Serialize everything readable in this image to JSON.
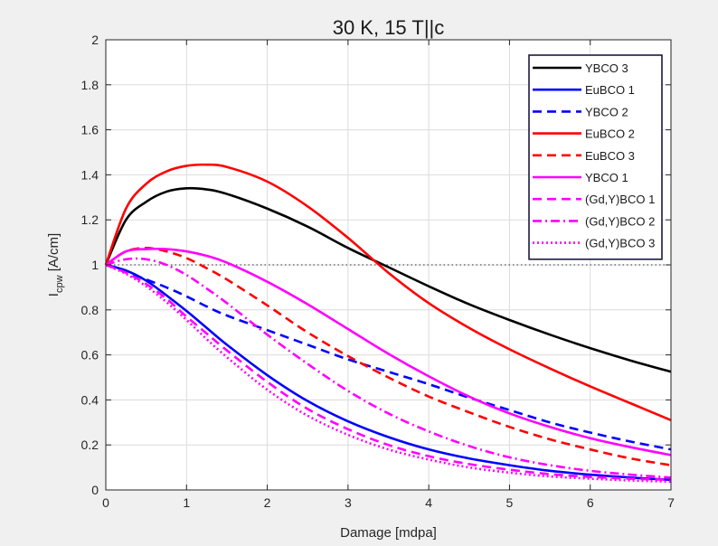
{
  "chart_data": {
    "type": "line",
    "title": "30 K, 15 T||c",
    "xlabel": "Damage [mdpa]",
    "ylabel_main": "I",
    "ylabel_sub": "cpw",
    "ylabel_unit": " [A/cm]",
    "xlim": [
      0,
      7
    ],
    "ylim": [
      0,
      2
    ],
    "xticks": [
      0,
      1,
      2,
      3,
      4,
      5,
      6,
      7
    ],
    "yticks": [
      0,
      0.2,
      0.4,
      0.6,
      0.8,
      1,
      1.2,
      1.4,
      1.6,
      1.8,
      2
    ],
    "grid": true,
    "legend_position": "top-right",
    "reference_line": {
      "y": 1,
      "style": "dotted",
      "color": "#555555"
    },
    "x": [
      0,
      0.25,
      0.5,
      0.75,
      1,
      1.25,
      1.5,
      2,
      2.5,
      3,
      3.5,
      4,
      4.5,
      5,
      5.5,
      6,
      6.5,
      7
    ],
    "series": [
      {
        "name": "YBCO 3",
        "color": "#000000",
        "dash": "solid",
        "values": [
          1.0,
          1.2,
          1.28,
          1.325,
          1.34,
          1.335,
          1.315,
          1.25,
          1.17,
          1.075,
          0.99,
          0.905,
          0.825,
          0.755,
          0.69,
          0.63,
          0.575,
          0.525
        ]
      },
      {
        "name": "EuBCO 1",
        "color": "#0000ff",
        "dash": "solid",
        "values": [
          1.0,
          0.975,
          0.93,
          0.865,
          0.795,
          0.72,
          0.645,
          0.51,
          0.395,
          0.305,
          0.235,
          0.18,
          0.14,
          0.11,
          0.085,
          0.068,
          0.055,
          0.045
        ]
      },
      {
        "name": "YBCO 2",
        "color": "#0000ff",
        "dash": "dashed",
        "values": [
          1.0,
          0.97,
          0.935,
          0.9,
          0.86,
          0.815,
          0.775,
          0.71,
          0.645,
          0.58,
          0.525,
          0.47,
          0.41,
          0.355,
          0.3,
          0.255,
          0.215,
          0.18
        ]
      },
      {
        "name": "EuBCO 2",
        "color": "#ff0000",
        "dash": "solid",
        "values": [
          1.0,
          1.25,
          1.36,
          1.415,
          1.44,
          1.445,
          1.435,
          1.37,
          1.26,
          1.12,
          0.965,
          0.83,
          0.72,
          0.625,
          0.54,
          0.46,
          0.385,
          0.31
        ]
      },
      {
        "name": "EuBCO 3",
        "color": "#ff0000",
        "dash": "dashed",
        "values": [
          1.0,
          1.06,
          1.075,
          1.06,
          1.03,
          0.985,
          0.935,
          0.82,
          0.7,
          0.595,
          0.5,
          0.415,
          0.345,
          0.28,
          0.225,
          0.18,
          0.14,
          0.11
        ]
      },
      {
        "name": "YBCO 1",
        "color": "#ff00ff",
        "dash": "solid",
        "values": [
          1.0,
          1.06,
          1.07,
          1.07,
          1.06,
          1.04,
          1.01,
          0.925,
          0.825,
          0.715,
          0.605,
          0.505,
          0.415,
          0.34,
          0.28,
          0.23,
          0.19,
          0.155
        ]
      },
      {
        "name": "(Gd,Y)BCO 1",
        "color": "#ff00ff",
        "dash": "dashed",
        "values": [
          1.0,
          0.965,
          0.915,
          0.85,
          0.77,
          0.695,
          0.62,
          0.48,
          0.36,
          0.27,
          0.2,
          0.15,
          0.115,
          0.09,
          0.07,
          0.058,
          0.05,
          0.045
        ]
      },
      {
        "name": "(Gd,Y)BCO 2",
        "color": "#ff00ff",
        "dash": "dashdot",
        "values": [
          1.0,
          1.025,
          1.025,
          1.0,
          0.955,
          0.895,
          0.83,
          0.69,
          0.56,
          0.44,
          0.34,
          0.26,
          0.195,
          0.145,
          0.11,
          0.085,
          0.068,
          0.055
        ]
      },
      {
        "name": "(Gd,Y)BCO 3",
        "color": "#ff00ff",
        "dash": "dotted",
        "values": [
          1.0,
          0.96,
          0.905,
          0.835,
          0.755,
          0.67,
          0.59,
          0.445,
          0.33,
          0.245,
          0.18,
          0.135,
          0.1,
          0.077,
          0.06,
          0.05,
          0.042,
          0.037
        ]
      }
    ]
  }
}
